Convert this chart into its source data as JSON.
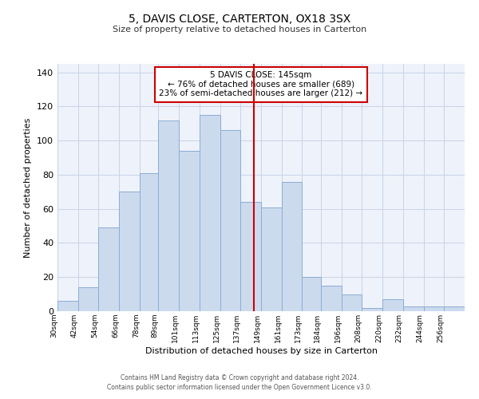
{
  "title": "5, DAVIS CLOSE, CARTERTON, OX18 3SX",
  "subtitle": "Size of property relative to detached houses in Carterton",
  "xlabel": "Distribution of detached houses by size in Carterton",
  "ylabel": "Number of detached properties",
  "bar_color": "#ccdaee",
  "bar_edge_color": "#8aadd4",
  "background_color": "#eef2fa",
  "grid_color": "#c8d4e8",
  "vline_x": 145,
  "vline_color": "#cc0000",
  "annotation_title": "5 DAVIS CLOSE: 145sqm",
  "annotation_line1": "← 76% of detached houses are smaller (689)",
  "annotation_line2": "23% of semi-detached houses are larger (212) →",
  "annotation_box_color": "#cc0000",
  "bins": [
    30,
    42,
    54,
    66,
    78,
    89,
    101,
    113,
    125,
    137,
    149,
    161,
    173,
    184,
    196,
    208,
    220,
    232,
    244,
    256,
    268
  ],
  "counts": [
    6,
    14,
    49,
    70,
    81,
    112,
    94,
    115,
    106,
    64,
    61,
    76,
    20,
    15,
    10,
    2,
    7,
    3,
    3,
    3
  ],
  "ylim": [
    0,
    145
  ],
  "yticks": [
    0,
    20,
    40,
    60,
    80,
    100,
    120,
    140
  ],
  "footnote1": "Contains HM Land Registry data © Crown copyright and database right 2024.",
  "footnote2": "Contains public sector information licensed under the Open Government Licence v3.0."
}
